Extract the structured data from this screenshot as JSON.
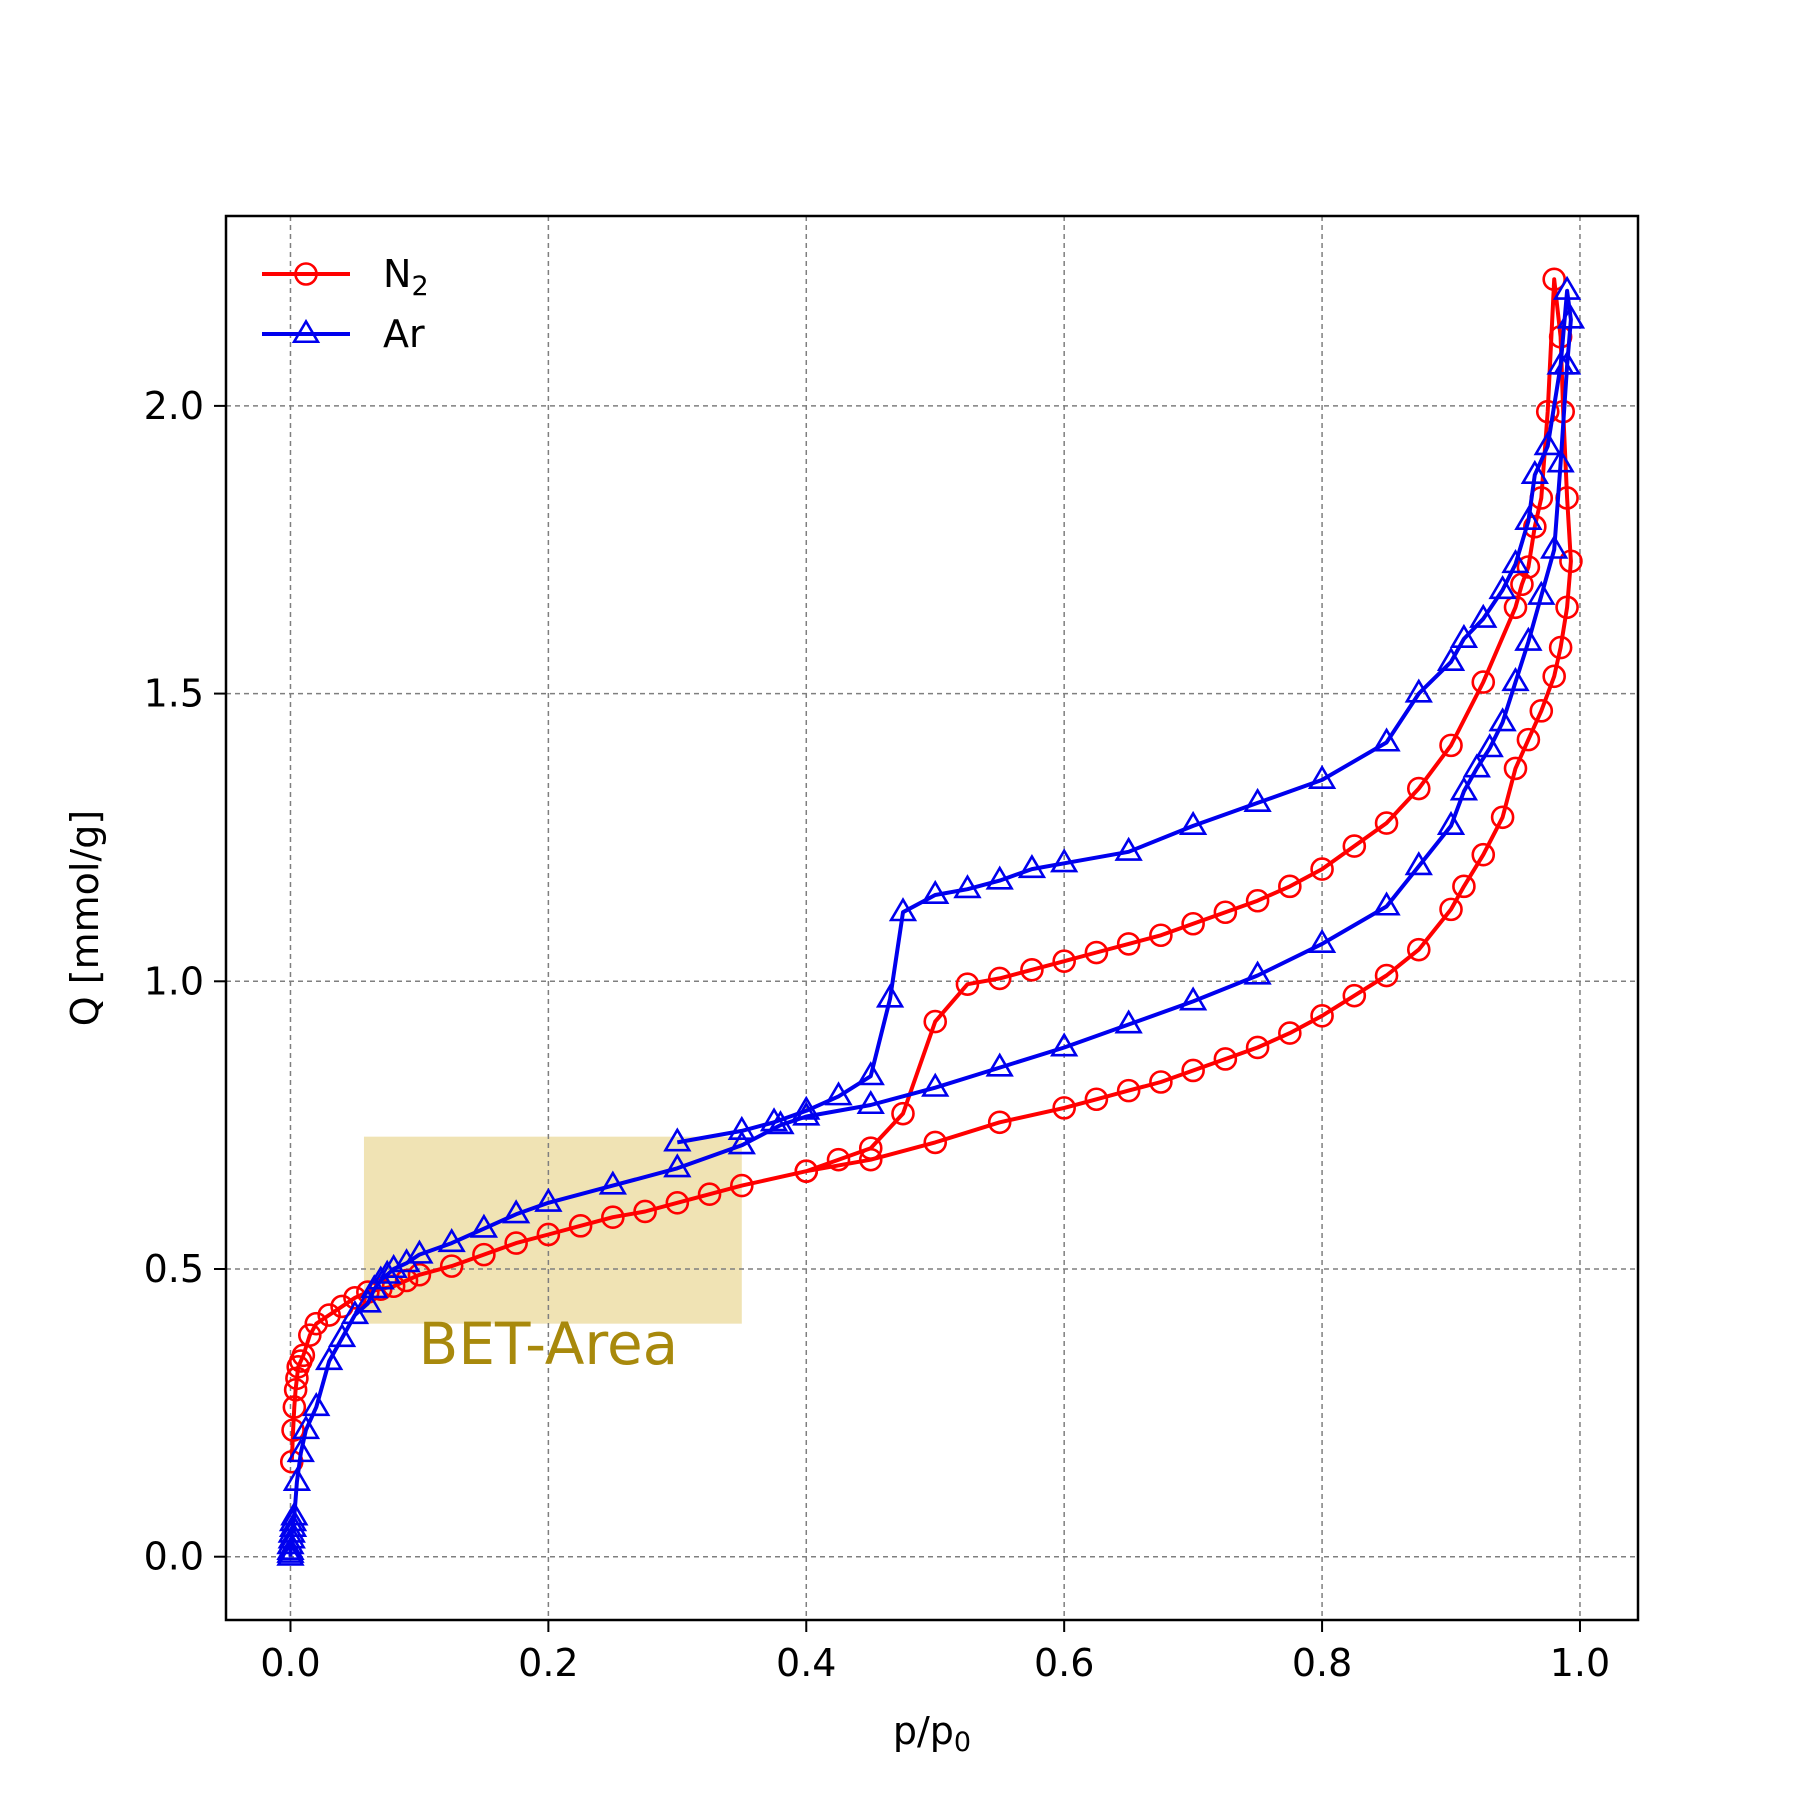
{
  "chart_data": {
    "type": "line",
    "title": "",
    "xlabel": "p/p",
    "xlabel_sub": "0",
    "ylabel": "Q [mmol/g]",
    "xlim": [
      -0.05,
      1.045
    ],
    "ylim": [
      -0.11,
      2.33
    ],
    "xticks": [
      0.0,
      0.2,
      0.4,
      0.6,
      0.8,
      1.0
    ],
    "xtick_labels": [
      "0.0",
      "0.2",
      "0.4",
      "0.6",
      "0.8",
      "1.0"
    ],
    "yticks": [
      0.0,
      0.5,
      1.0,
      1.5,
      2.0
    ],
    "ytick_labels": [
      "0.0",
      "0.5",
      "1.0",
      "1.5",
      "2.0"
    ],
    "grid": true,
    "legend_position": "top-left",
    "annotations": [
      {
        "text": "BET-Area",
        "x": 0.2,
        "y": 0.335,
        "color": "#a8890c"
      }
    ],
    "shaded_region": {
      "x": [
        0.057,
        0.35
      ],
      "y": [
        0.405,
        0.73
      ],
      "color": "#e8d48c"
    },
    "series": [
      {
        "name": "N",
        "name_sub": "2",
        "color": "#ff0000",
        "marker": "circle",
        "x": [
          0.001,
          0.002,
          0.003,
          0.004,
          0.005,
          0.006,
          0.008,
          0.01,
          0.015,
          0.02,
          0.03,
          0.04,
          0.05,
          0.06,
          0.07,
          0.08,
          0.09,
          0.1,
          0.125,
          0.15,
          0.175,
          0.2,
          0.225,
          0.25,
          0.275,
          0.3,
          0.325,
          0.35,
          0.4,
          0.45,
          0.5,
          0.55,
          0.6,
          0.625,
          0.65,
          0.675,
          0.7,
          0.725,
          0.75,
          0.775,
          0.8,
          0.825,
          0.85,
          0.875,
          0.9,
          0.91,
          0.925,
          0.94,
          0.95,
          0.96,
          0.97,
          0.98,
          0.985,
          0.99,
          0.993,
          0.99,
          0.987,
          0.985,
          0.98,
          0.975,
          0.97,
          0.965,
          0.96,
          0.955,
          0.95,
          0.925,
          0.9,
          0.875,
          0.85,
          0.825,
          0.8,
          0.775,
          0.75,
          0.725,
          0.7,
          0.675,
          0.65,
          0.625,
          0.6,
          0.575,
          0.55,
          0.525,
          0.5,
          0.475,
          0.45,
          0.425,
          0.4
        ],
        "y": [
          0.165,
          0.22,
          0.26,
          0.29,
          0.31,
          0.33,
          0.34,
          0.35,
          0.385,
          0.405,
          0.42,
          0.435,
          0.45,
          0.46,
          0.465,
          0.47,
          0.48,
          0.49,
          0.505,
          0.525,
          0.545,
          0.56,
          0.575,
          0.59,
          0.6,
          0.615,
          0.63,
          0.645,
          0.67,
          0.69,
          0.72,
          0.755,
          0.78,
          0.795,
          0.81,
          0.825,
          0.845,
          0.865,
          0.885,
          0.91,
          0.94,
          0.975,
          1.01,
          1.055,
          1.125,
          1.165,
          1.22,
          1.285,
          1.37,
          1.42,
          1.47,
          1.53,
          1.58,
          1.65,
          1.73,
          1.84,
          1.99,
          2.12,
          2.22,
          1.99,
          1.84,
          1.79,
          1.72,
          1.69,
          1.65,
          1.52,
          1.41,
          1.335,
          1.275,
          1.235,
          1.195,
          1.165,
          1.14,
          1.12,
          1.1,
          1.08,
          1.065,
          1.05,
          1.035,
          1.02,
          1.005,
          0.995,
          0.93,
          0.77,
          0.71,
          0.69,
          0.67
        ]
      },
      {
        "name": "Ar",
        "color": "#0000ee",
        "marker": "triangle",
        "x": [
          0.0,
          0.0,
          0.0,
          0.0,
          0.001,
          0.001,
          0.002,
          0.002,
          0.003,
          0.005,
          0.008,
          0.012,
          0.02,
          0.03,
          0.04,
          0.05,
          0.06,
          0.065,
          0.07,
          0.075,
          0.08,
          0.09,
          0.1,
          0.125,
          0.15,
          0.175,
          0.2,
          0.25,
          0.3,
          0.35,
          0.38,
          0.4,
          0.45,
          0.5,
          0.55,
          0.6,
          0.65,
          0.7,
          0.75,
          0.8,
          0.85,
          0.875,
          0.9,
          0.91,
          0.92,
          0.93,
          0.94,
          0.95,
          0.96,
          0.97,
          0.98,
          0.985,
          0.99,
          0.993,
          0.99,
          0.985,
          0.975,
          0.965,
          0.96,
          0.95,
          0.94,
          0.925,
          0.91,
          0.9,
          0.875,
          0.85,
          0.8,
          0.75,
          0.7,
          0.65,
          0.6,
          0.575,
          0.55,
          0.525,
          0.5,
          0.475,
          0.465,
          0.45,
          0.425,
          0.4,
          0.375,
          0.35,
          0.3
        ],
        "y": [
          0.0,
          0.005,
          0.01,
          0.02,
          0.03,
          0.04,
          0.05,
          0.06,
          0.07,
          0.13,
          0.18,
          0.22,
          0.26,
          0.34,
          0.38,
          0.42,
          0.44,
          0.465,
          0.48,
          0.49,
          0.5,
          0.51,
          0.525,
          0.545,
          0.57,
          0.595,
          0.615,
          0.645,
          0.675,
          0.715,
          0.75,
          0.765,
          0.785,
          0.815,
          0.85,
          0.885,
          0.925,
          0.965,
          1.01,
          1.065,
          1.13,
          1.2,
          1.27,
          1.33,
          1.37,
          1.405,
          1.45,
          1.52,
          1.59,
          1.67,
          1.75,
          1.9,
          2.07,
          2.15,
          2.2,
          2.07,
          1.93,
          1.88,
          1.8,
          1.725,
          1.68,
          1.63,
          1.595,
          1.555,
          1.5,
          1.415,
          1.35,
          1.31,
          1.27,
          1.225,
          1.205,
          1.195,
          1.175,
          1.16,
          1.15,
          1.12,
          0.97,
          0.835,
          0.8,
          0.775,
          0.755,
          0.74,
          0.72
        ]
      }
    ]
  }
}
